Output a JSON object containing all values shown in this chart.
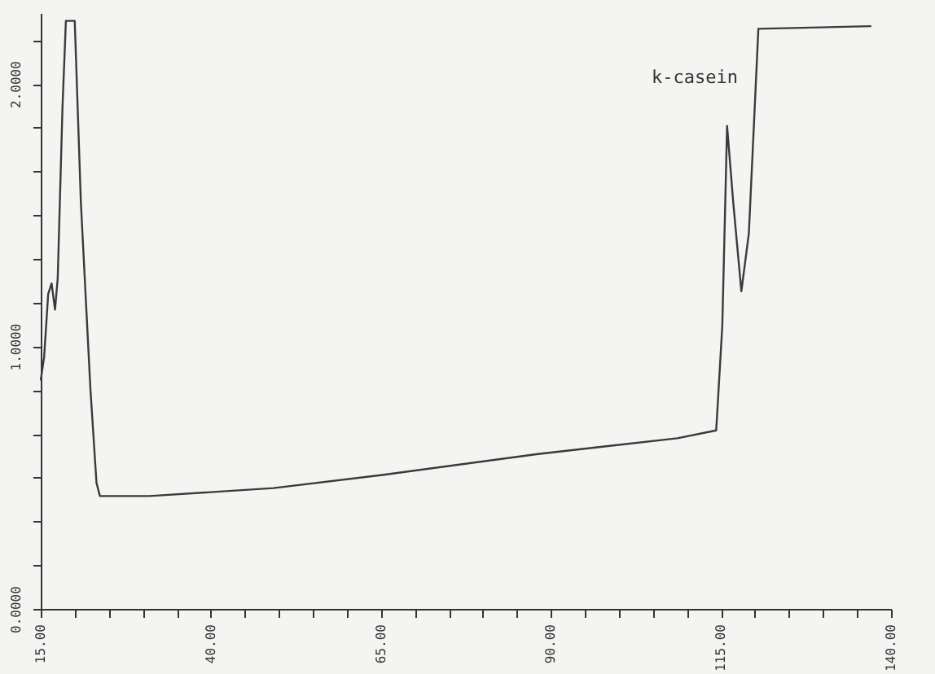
{
  "chart_data": {
    "type": "line",
    "annotations": [
      "k-casein"
    ],
    "xlim": [
      15,
      140
    ],
    "ylim": [
      0,
      2.27
    ],
    "xticks": [
      {
        "value": 15,
        "label": "15.00"
      },
      {
        "value": 20,
        "label": null
      },
      {
        "value": 25,
        "label": null
      },
      {
        "value": 30,
        "label": null
      },
      {
        "value": 35,
        "label": null
      },
      {
        "value": 40,
        "label": "40.00"
      },
      {
        "value": 45,
        "label": null
      },
      {
        "value": 50,
        "label": null
      },
      {
        "value": 55,
        "label": null
      },
      {
        "value": 60,
        "label": null
      },
      {
        "value": 65,
        "label": "65.00"
      },
      {
        "value": 70,
        "label": null
      },
      {
        "value": 75,
        "label": null
      },
      {
        "value": 80,
        "label": null
      },
      {
        "value": 85,
        "label": null
      },
      {
        "value": 90,
        "label": "90.00"
      },
      {
        "value": 95,
        "label": null
      },
      {
        "value": 100,
        "label": null
      },
      {
        "value": 105,
        "label": null
      },
      {
        "value": 110,
        "label": null
      },
      {
        "value": 115,
        "label": "115.00"
      },
      {
        "value": 120,
        "label": null
      },
      {
        "value": 125,
        "label": null
      },
      {
        "value": 130,
        "label": null
      },
      {
        "value": 135,
        "label": null
      },
      {
        "value": 140,
        "label": "140.00"
      }
    ],
    "yticks": [
      {
        "value": 0,
        "label": "0.0000"
      },
      {
        "value": 0.1667,
        "label": null
      },
      {
        "value": 0.3333,
        "label": null
      },
      {
        "value": 0.5,
        "label": null
      },
      {
        "value": 0.6667,
        "label": null
      },
      {
        "value": 0.8333,
        "label": null
      },
      {
        "value": 1,
        "label": "1.0000"
      },
      {
        "value": 1.1667,
        "label": null
      },
      {
        "value": 1.3333,
        "label": null
      },
      {
        "value": 1.5,
        "label": null
      },
      {
        "value": 1.6667,
        "label": null
      },
      {
        "value": 1.8333,
        "label": null
      },
      {
        "value": 2,
        "label": "2.0000"
      },
      {
        "value": 2.1667,
        "label": null
      }
    ],
    "grid": false,
    "line_style": "solid",
    "x": [
      15.0,
      15.5,
      16.1,
      16.6,
      17.1,
      17.5,
      18.2,
      18.7,
      20.0,
      20.9,
      22.3,
      23.2,
      23.7,
      31.0,
      49.2,
      65.2,
      88.1,
      108.6,
      114.3,
      115.2,
      115.9,
      116.8,
      118.0,
      119.1,
      120.5,
      137.1
    ],
    "series": [
      {
        "color": "#3a3a3a",
        "values": [
          0.87,
          0.96,
          1.2,
          1.24,
          1.14,
          1.26,
          1.91,
          2.24,
          2.24,
          1.55,
          0.84,
          0.48,
          0.43,
          0.43,
          0.46,
          0.51,
          0.59,
          0.65,
          0.68,
          1.08,
          1.84,
          1.55,
          1.21,
          1.43,
          2.21,
          2.22
        ]
      }
    ]
  }
}
